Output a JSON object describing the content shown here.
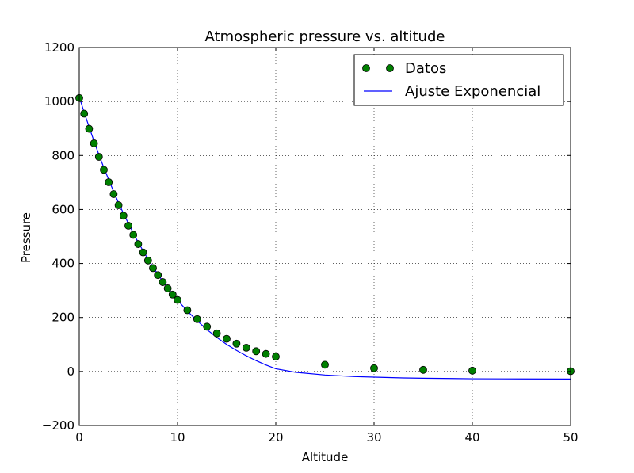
{
  "chart_data": {
    "type": "scatter",
    "title": "Atmospheric pressure vs. altitude",
    "xlabel": "Altitude",
    "ylabel": "Pressure",
    "xlim": [
      0,
      50
    ],
    "ylim": [
      -200,
      1200
    ],
    "xticks": [
      0,
      10,
      20,
      30,
      40,
      50
    ],
    "yticks": [
      -200,
      0,
      200,
      400,
      600,
      800,
      1000,
      1200
    ],
    "xtick_labels": [
      "0",
      "10",
      "20",
      "30",
      "40",
      "50"
    ],
    "ytick_labels": [
      "−200",
      "0",
      "200",
      "400",
      "600",
      "800",
      "1000",
      "1200"
    ],
    "grid": true,
    "legend_position": "top-right",
    "series": [
      {
        "name": "Datos",
        "kind": "points",
        "color": "#008000",
        "edge_color": "#000000",
        "x": [
          0,
          0.5,
          1,
          1.5,
          2,
          2.5,
          3,
          3.5,
          4,
          4.5,
          5,
          5.5,
          6,
          6.5,
          7,
          7.5,
          8,
          8.5,
          9,
          9.5,
          10,
          11,
          12,
          13,
          14,
          15,
          16,
          17,
          18,
          19,
          20,
          25,
          30,
          35,
          40,
          50
        ],
        "y": [
          1013,
          955,
          899,
          845,
          795,
          747,
          701,
          657,
          616,
          577,
          540,
          506,
          472,
          441,
          411,
          383,
          357,
          331,
          308,
          285,
          265,
          227,
          194,
          166,
          141,
          121,
          103,
          88,
          75,
          65,
          55,
          25,
          12,
          6,
          3,
          1
        ]
      },
      {
        "name": "Ajuste Exponencial",
        "kind": "line",
        "color": "#0000ff",
        "x": [
          0,
          0.5,
          1,
          1.5,
          2,
          2.5,
          3,
          3.5,
          4,
          4.5,
          5,
          6,
          7,
          8,
          9,
          10,
          11,
          12,
          13,
          14,
          15,
          16,
          17,
          18,
          19,
          20,
          22,
          25,
          28,
          30,
          33,
          35,
          38,
          40,
          45,
          50
        ],
        "y": [
          1017,
          960,
          906,
          853,
          803,
          755,
          710,
          666,
          625,
          585,
          548,
          478,
          416,
          360,
          309,
          264,
          224,
          188,
          155,
          126,
          100,
          78,
          58,
          40,
          24,
          10,
          -3,
          -13,
          -19,
          -21,
          -24,
          -25,
          -26,
          -27,
          -27.5,
          -28
        ]
      }
    ]
  }
}
